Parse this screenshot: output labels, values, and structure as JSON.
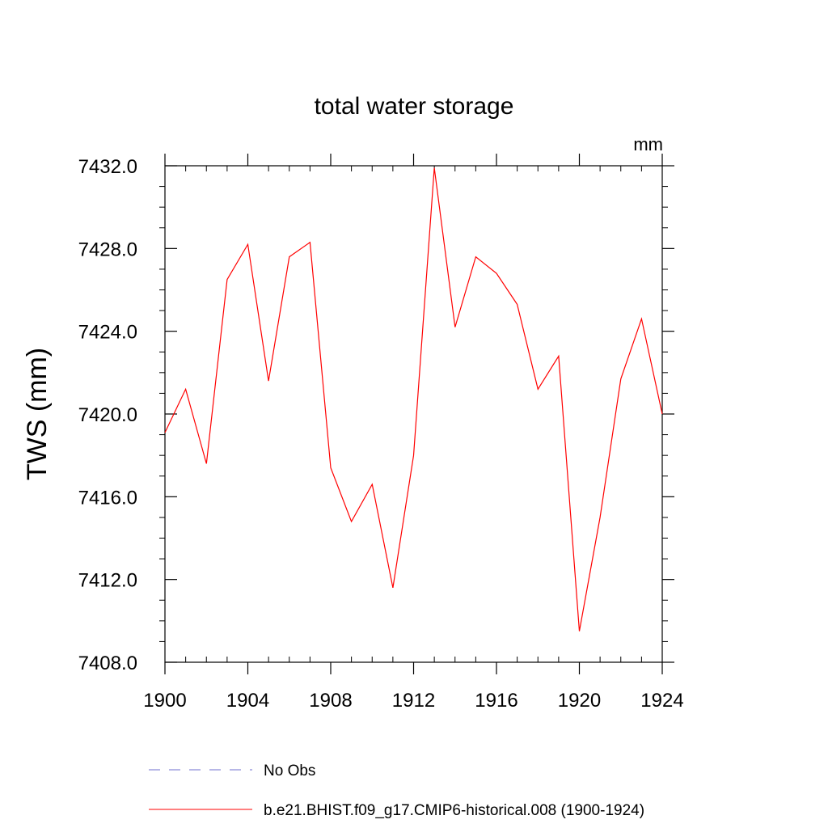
{
  "chart_data": {
    "type": "line",
    "title": "total water storage",
    "units": "mm",
    "xlabel": "",
    "ylabel": "TWS  (mm)",
    "xlim": [
      1900,
      1924
    ],
    "ylim": [
      7408,
      7432
    ],
    "x_ticks": [
      1900,
      1904,
      1908,
      1912,
      1916,
      1920,
      1924
    ],
    "x_tick_labels": [
      "1900",
      "1904",
      "1908",
      "1912",
      "1916",
      "1920",
      "1924"
    ],
    "y_ticks": [
      7408,
      7412,
      7416,
      7420,
      7424,
      7428,
      7432
    ],
    "y_tick_labels": [
      "7408.0",
      "7412.0",
      "7416.0",
      "7420.0",
      "7424.0",
      "7428.0",
      "7432.0"
    ],
    "grid": false,
    "legend_placement": "bottom",
    "series": [
      {
        "name": "b.e21.BHIST.f09_g17.CMIP6-historical.008 (1900-1924)",
        "color": "#ff0000",
        "style": "solid",
        "x": [
          1900,
          1901,
          1902,
          1903,
          1904,
          1905,
          1906,
          1907,
          1908,
          1909,
          1910,
          1911,
          1912,
          1913,
          1914,
          1915,
          1916,
          1917,
          1918,
          1919,
          1920,
          1921,
          1922,
          1923,
          1924
        ],
        "values": [
          7419.1,
          7421.2,
          7417.6,
          7426.5,
          7428.2,
          7421.6,
          7427.6,
          7428.3,
          7417.4,
          7414.8,
          7416.6,
          7411.6,
          7418.0,
          7431.9,
          7424.2,
          7427.6,
          7426.8,
          7425.3,
          7421.2,
          7422.8,
          7409.5,
          7415.0,
          7421.7,
          7424.6,
          7420.0
        ]
      }
    ],
    "legend": [
      {
        "label": "No Obs",
        "color": "#6f6fcf",
        "style": "dashed"
      },
      {
        "label": "b.e21.BHIST.f09_g17.CMIP6-historical.008 (1900-1924)",
        "color": "#ff0000",
        "style": "solid"
      }
    ]
  }
}
